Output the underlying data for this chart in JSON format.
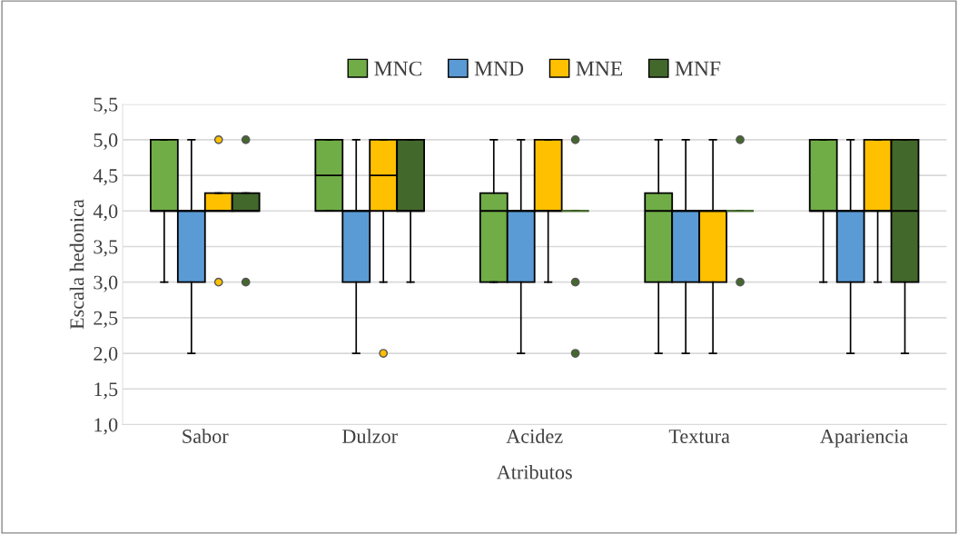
{
  "chart_data": {
    "type": "box",
    "xlabel": "Atributos",
    "ylabel": "Escala hedonica",
    "categories": [
      "Sabor",
      "Dulzor",
      "Acidez",
      "Textura",
      "Apariencia"
    ],
    "ylim": [
      1.0,
      5.5
    ],
    "yticks": [
      {
        "value": 1.0,
        "label": "1,0"
      },
      {
        "value": 1.5,
        "label": "1,5"
      },
      {
        "value": 2.0,
        "label": "2,0"
      },
      {
        "value": 2.5,
        "label": "2,5"
      },
      {
        "value": 3.0,
        "label": "3,0"
      },
      {
        "value": 3.5,
        "label": "3,5"
      },
      {
        "value": 4.0,
        "label": "4,0"
      },
      {
        "value": 4.5,
        "label": "4,5"
      },
      {
        "value": 5.0,
        "label": "5,0"
      },
      {
        "value": 5.5,
        "label": "5,5"
      }
    ],
    "grid": "y",
    "legend": "top",
    "series": [
      {
        "name": "MNC",
        "color": "#70ad47",
        "boxes": [
          {
            "low": 3,
            "q1": 4,
            "median": 4,
            "q3": 5,
            "high": 5
          },
          {
            "low": 4,
            "q1": 4,
            "median": 4.5,
            "q3": 5,
            "high": 5
          },
          {
            "low": 3,
            "q1": 3,
            "median": 4,
            "q3": 4.25,
            "high": 5
          },
          {
            "low": 2,
            "q1": 3,
            "median": 4,
            "q3": 4.25,
            "high": 5
          },
          {
            "low": 3,
            "q1": 4,
            "median": 4,
            "q3": 5,
            "high": 5
          }
        ]
      },
      {
        "name": "MND",
        "color": "#5b9bd5",
        "boxes": [
          {
            "low": 2,
            "q1": 3,
            "median": 4,
            "q3": 4,
            "high": 5
          },
          {
            "low": 2,
            "q1": 3,
            "median": 4,
            "q3": 4,
            "high": 5
          },
          {
            "low": 2,
            "q1": 3,
            "median": 4,
            "q3": 4,
            "high": 5
          },
          {
            "low": 2,
            "q1": 3,
            "median": 4,
            "q3": 4,
            "high": 5
          },
          {
            "low": 2,
            "q1": 3,
            "median": 4,
            "q3": 4,
            "high": 5
          }
        ]
      },
      {
        "name": "MNE",
        "color": "#ffc000",
        "boxes": [
          {
            "low": 4,
            "q1": 4,
            "median": 4,
            "q3": 4.25,
            "high": 4.25,
            "outliers": [
              5,
              3
            ]
          },
          {
            "low": 3,
            "q1": 4,
            "median": 4.5,
            "q3": 5,
            "high": 5,
            "outliers": [
              2
            ]
          },
          {
            "low": 3,
            "q1": 4,
            "median": 4,
            "q3": 5,
            "high": 5
          },
          {
            "low": 2,
            "q1": 3,
            "median": 4,
            "q3": 4,
            "high": 5
          },
          {
            "low": 3,
            "q1": 4,
            "median": 4,
            "q3": 5,
            "high": 5
          }
        ]
      },
      {
        "name": "MNF",
        "color": "#43682b",
        "boxes": [
          {
            "low": 4,
            "q1": 4,
            "median": 4,
            "q3": 4.25,
            "high": 4.25,
            "outliers": [
              5,
              3
            ]
          },
          {
            "low": 3,
            "q1": 4,
            "median": 4,
            "q3": 5,
            "high": 5
          },
          {
            "low": 4,
            "q1": 4,
            "median": 4,
            "q3": 4,
            "high": 4,
            "outliers": [
              5,
              3,
              2
            ]
          },
          {
            "low": 4,
            "q1": 4,
            "median": 4,
            "q3": 4,
            "high": 4,
            "outliers": [
              5,
              3
            ]
          },
          {
            "low": 2,
            "q1": 3,
            "median": 4,
            "q3": 5,
            "high": 5
          }
        ]
      }
    ]
  }
}
